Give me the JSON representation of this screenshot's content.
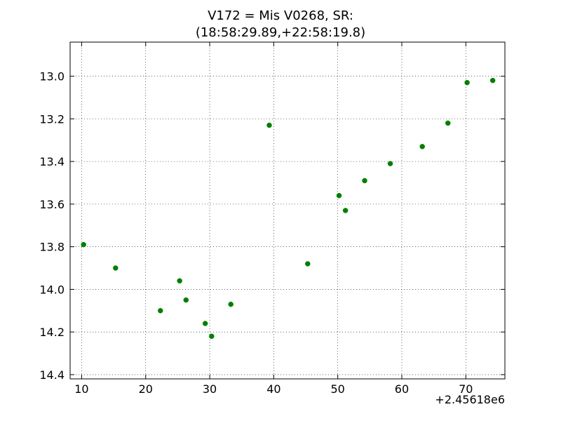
{
  "chart_data": {
    "type": "scatter",
    "title_lines": [
      "V172 = Mis V0268, SR:",
      "(18:58:29.89,+22:58:19.8)"
    ],
    "x_offset_label": "+2.45618e6",
    "x_ticks": [
      "10",
      "20",
      "30",
      "40",
      "50",
      "60",
      "70"
    ],
    "y_ticks": [
      "13.0",
      "13.2",
      "13.4",
      "13.6",
      "13.8",
      "14.0",
      "14.2",
      "14.4"
    ],
    "xlim": [
      8.2,
      76.1
    ],
    "ylim": [
      14.42,
      12.84
    ],
    "y_inverted": true,
    "grid": true,
    "point_color": "#007f00",
    "points": [
      {
        "x": 10.3,
        "y": 13.79
      },
      {
        "x": 15.3,
        "y": 13.9
      },
      {
        "x": 22.3,
        "y": 14.1
      },
      {
        "x": 25.3,
        "y": 13.96
      },
      {
        "x": 26.3,
        "y": 14.05
      },
      {
        "x": 29.3,
        "y": 14.16
      },
      {
        "x": 30.3,
        "y": 14.22
      },
      {
        "x": 33.3,
        "y": 14.07
      },
      {
        "x": 39.3,
        "y": 13.23
      },
      {
        "x": 45.3,
        "y": 13.88
      },
      {
        "x": 50.2,
        "y": 13.56
      },
      {
        "x": 51.2,
        "y": 13.63
      },
      {
        "x": 54.2,
        "y": 13.49
      },
      {
        "x": 58.2,
        "y": 13.41
      },
      {
        "x": 63.2,
        "y": 13.33
      },
      {
        "x": 67.2,
        "y": 13.22
      },
      {
        "x": 70.2,
        "y": 13.03
      },
      {
        "x": 74.2,
        "y": 13.02
      }
    ]
  }
}
